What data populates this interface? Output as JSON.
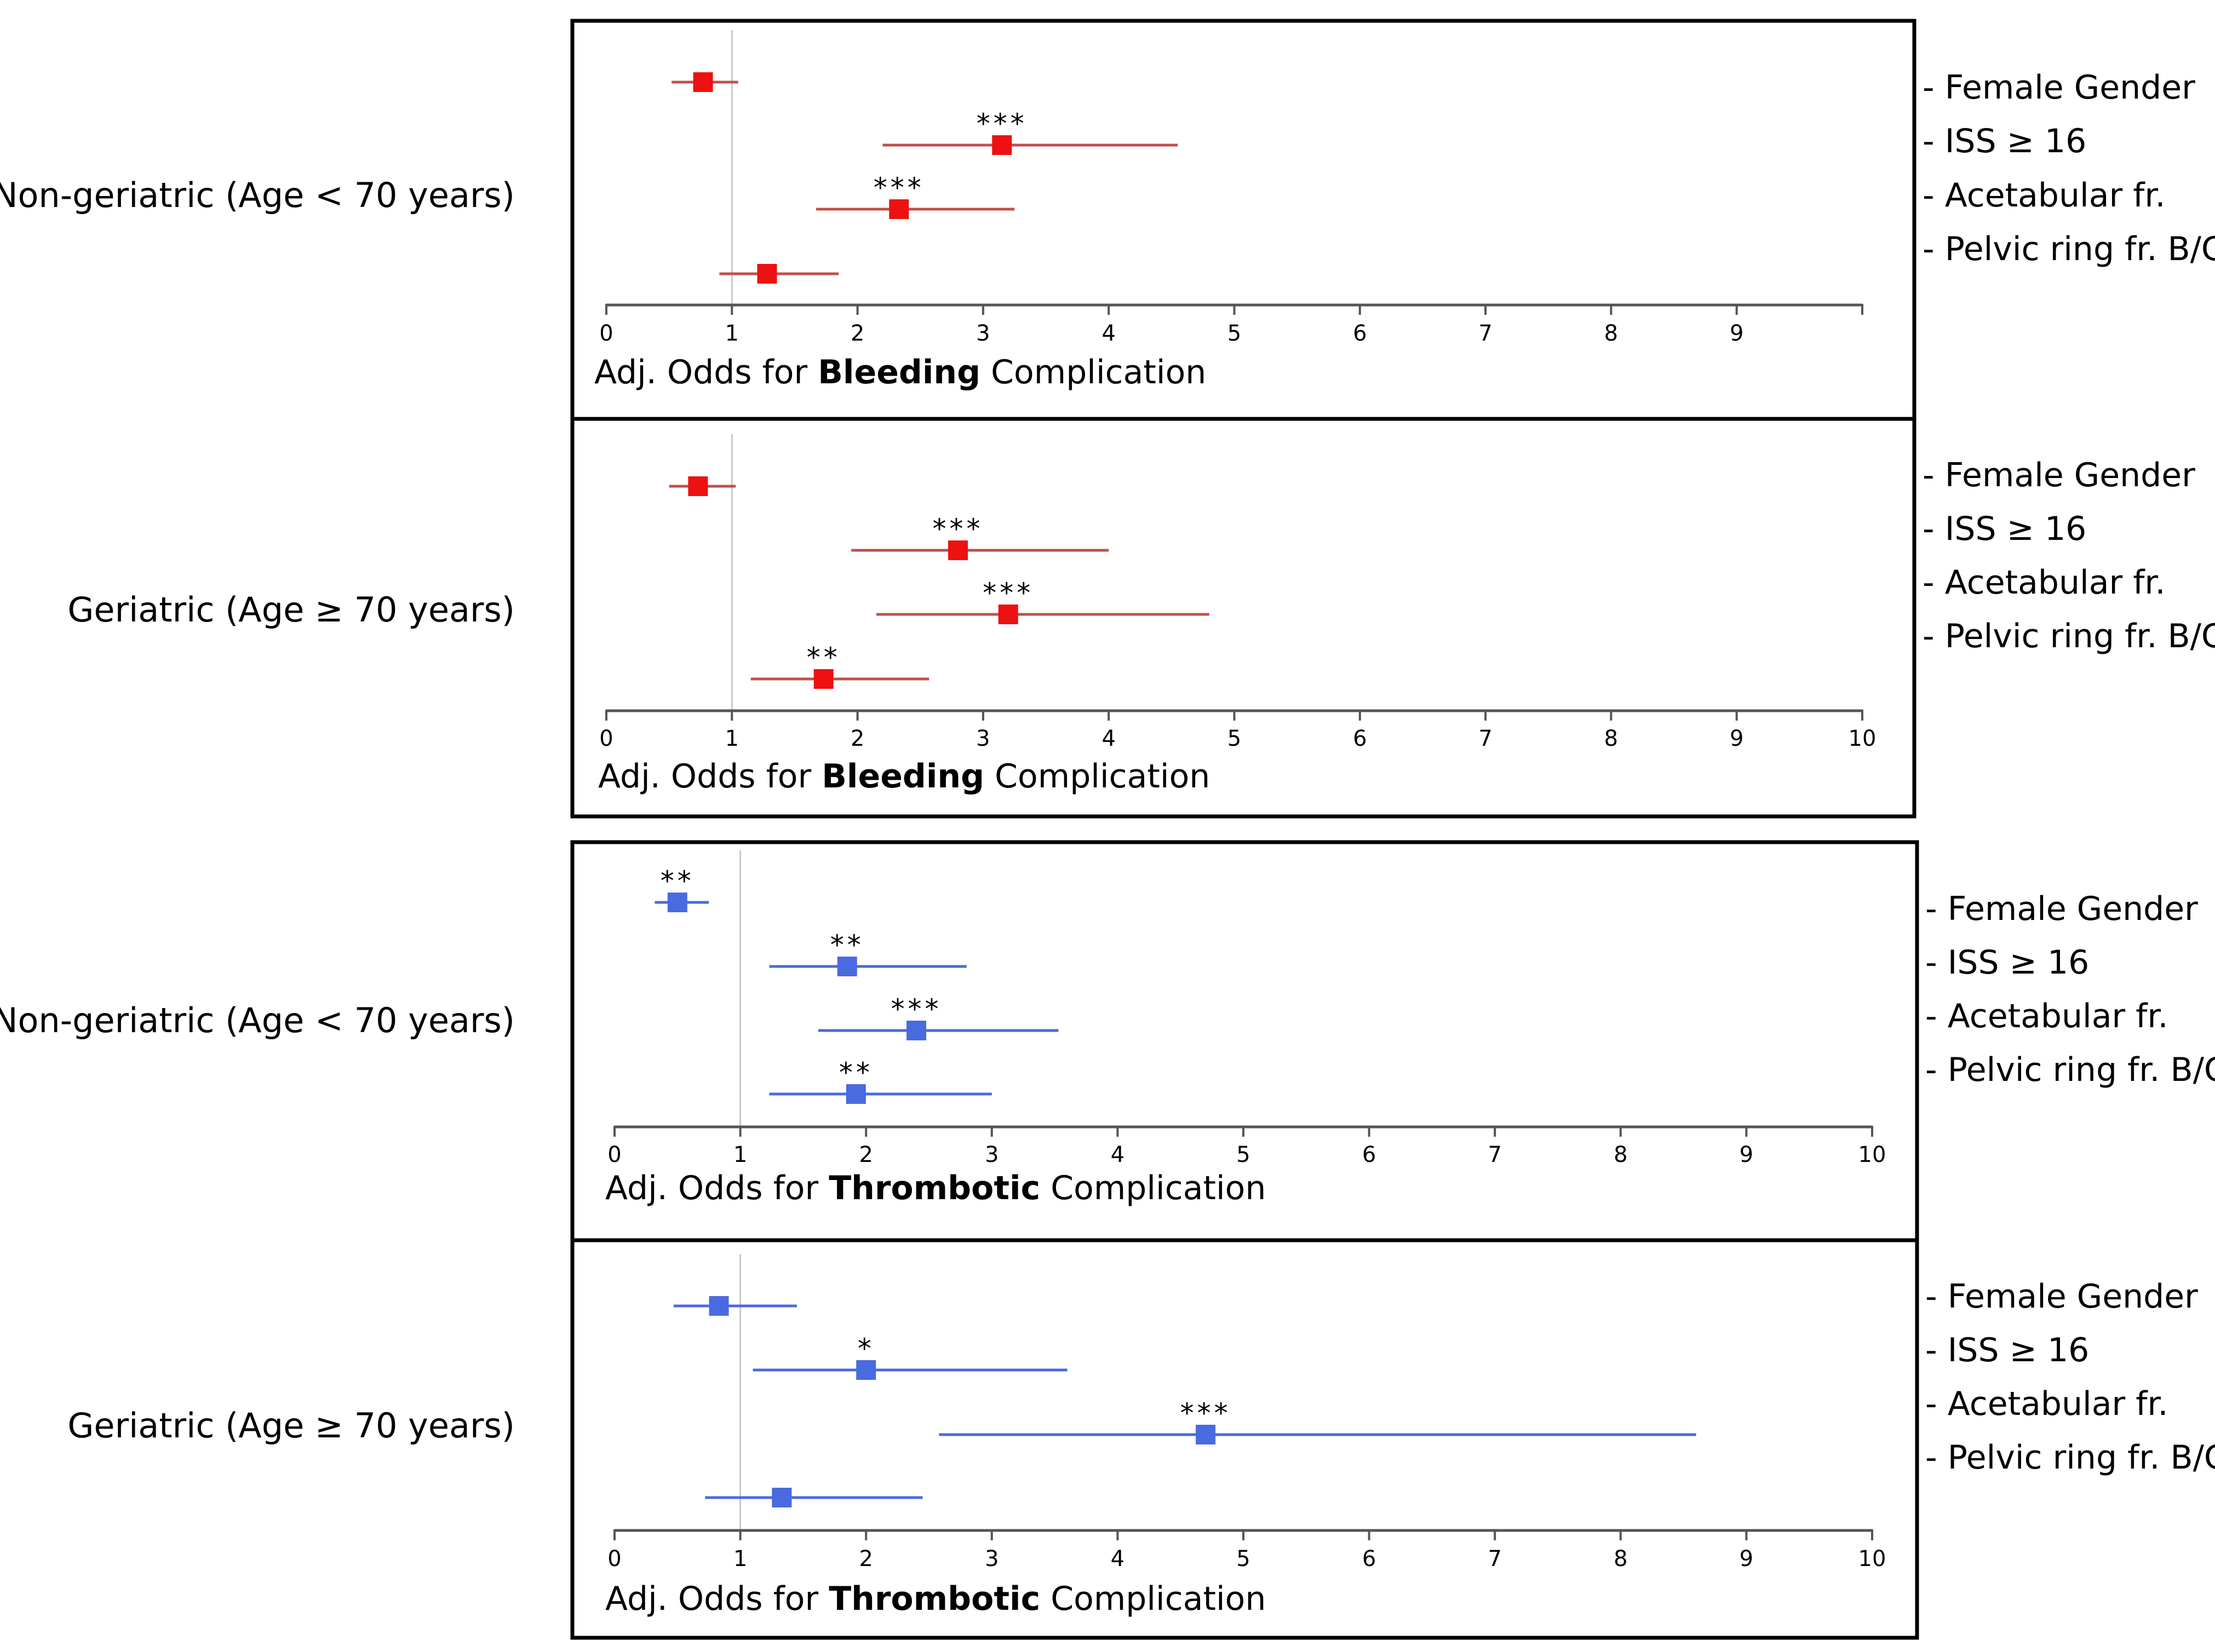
{
  "groups": {
    "top_non_geriatric": "Non-geriatric (Age < 70 years)",
    "top_geriatric": "Geriatric (Age ≥ 70 years)",
    "bottom_non_geriatric": "Non-geriatric (Age < 70 years)",
    "bottom_geriatric": "Geriatric (Age ≥ 70 years)"
  },
  "category_prefix": "- ",
  "chart_data": [
    {
      "type": "forest",
      "group": "Non-geriatric (Age < 70 years)",
      "color": "#ee1111",
      "whisker_color": "#c0504d",
      "axis_title_pre": "Adj. Odds for ",
      "axis_title_bold": "Bleeding",
      "axis_title_post": " Complication",
      "xlim": [
        0,
        10
      ],
      "ticks": [
        0,
        1,
        2,
        3,
        4,
        5,
        6,
        7,
        8,
        9
      ],
      "tick_labels": [
        "0",
        "1",
        "2",
        "3",
        "4",
        "5",
        "6",
        "7",
        "8",
        "9"
      ],
      "reference_line": 1,
      "rows": [
        {
          "label": "Female Gender",
          "or": 0.77,
          "lo": 0.52,
          "hi": 1.05,
          "sig": ""
        },
        {
          "label": "ISS ≥ 16",
          "or": 3.15,
          "lo": 2.2,
          "hi": 4.55,
          "sig": "***"
        },
        {
          "label": "Acetabular fr.",
          "or": 2.33,
          "lo": 1.67,
          "hi": 3.25,
          "sig": "***"
        },
        {
          "label": "Pelvic ring fr. B/C",
          "or": 1.28,
          "lo": 0.9,
          "hi": 1.85,
          "sig": ""
        }
      ]
    },
    {
      "type": "forest",
      "group": "Geriatric (Age ≥ 70 years)",
      "color": "#ee1111",
      "whisker_color": "#c0504d",
      "axis_title_pre": "Adj. Odds for ",
      "axis_title_bold": "Bleeding",
      "axis_title_post": " Complication",
      "xlim": [
        0,
        10
      ],
      "ticks": [
        0,
        1,
        2,
        3,
        4,
        5,
        6,
        7,
        8,
        9,
        10
      ],
      "tick_labels": [
        "0",
        "1",
        "2",
        "3",
        "4",
        "5",
        "6",
        "7",
        "8",
        "9",
        "10"
      ],
      "reference_line": 1,
      "rows": [
        {
          "label": "Female Gender",
          "or": 0.73,
          "lo": 0.5,
          "hi": 1.03,
          "sig": ""
        },
        {
          "label": "ISS ≥ 16",
          "or": 2.8,
          "lo": 1.95,
          "hi": 4.0,
          "sig": "***"
        },
        {
          "label": "Acetabular fr.",
          "or": 3.2,
          "lo": 2.15,
          "hi": 4.8,
          "sig": "***"
        },
        {
          "label": "Pelvic ring fr. B/C",
          "or": 1.73,
          "lo": 1.15,
          "hi": 2.57,
          "sig": "**"
        }
      ]
    },
    {
      "type": "forest",
      "group": "Non-geriatric (Age < 70 years)",
      "color": "#4a6ae0",
      "whisker_color": "#4a6ae0",
      "axis_title_pre": "Adj. Odds for ",
      "axis_title_bold": "Thrombotic",
      "axis_title_post": " Complication",
      "xlim": [
        0,
        10
      ],
      "ticks": [
        0,
        1,
        2,
        3,
        4,
        5,
        6,
        7,
        8,
        9,
        10
      ],
      "tick_labels": [
        "0",
        "1",
        "2",
        "3",
        "4",
        "5",
        "6",
        "7",
        "8",
        "9",
        "10"
      ],
      "reference_line": 1,
      "rows": [
        {
          "label": "Female Gender",
          "or": 0.5,
          "lo": 0.32,
          "hi": 0.75,
          "sig": "**"
        },
        {
          "label": "ISS ≥ 16",
          "or": 1.85,
          "lo": 1.23,
          "hi": 2.8,
          "sig": "**"
        },
        {
          "label": "Acetabular fr.",
          "or": 2.4,
          "lo": 1.62,
          "hi": 3.53,
          "sig": "***"
        },
        {
          "label": "Pelvic ring fr. B/C",
          "or": 1.92,
          "lo": 1.23,
          "hi": 3.0,
          "sig": "**"
        }
      ]
    },
    {
      "type": "forest",
      "group": "Geriatric (Age ≥ 70 years)",
      "color": "#4a6ae0",
      "whisker_color": "#4a6ae0",
      "axis_title_pre": "Adj. Odds for ",
      "axis_title_bold": "Thrombotic",
      "axis_title_post": " Complication",
      "xlim": [
        0,
        10
      ],
      "ticks": [
        0,
        1,
        2,
        3,
        4,
        5,
        6,
        7,
        8,
        9,
        10
      ],
      "tick_labels": [
        "0",
        "1",
        "2",
        "3",
        "4",
        "5",
        "6",
        "7",
        "8",
        "9",
        "10"
      ],
      "reference_line": 1,
      "rows": [
        {
          "label": "Female Gender",
          "or": 0.83,
          "lo": 0.47,
          "hi": 1.45,
          "sig": ""
        },
        {
          "label": "ISS ≥ 16",
          "or": 2.0,
          "lo": 1.1,
          "hi": 3.6,
          "sig": "*"
        },
        {
          "label": "Acetabular fr.",
          "or": 4.7,
          "lo": 2.58,
          "hi": 8.6,
          "sig": "***"
        },
        {
          "label": "Pelvic ring fr. B/C",
          "or": 1.33,
          "lo": 0.72,
          "hi": 2.45,
          "sig": ""
        }
      ]
    }
  ]
}
